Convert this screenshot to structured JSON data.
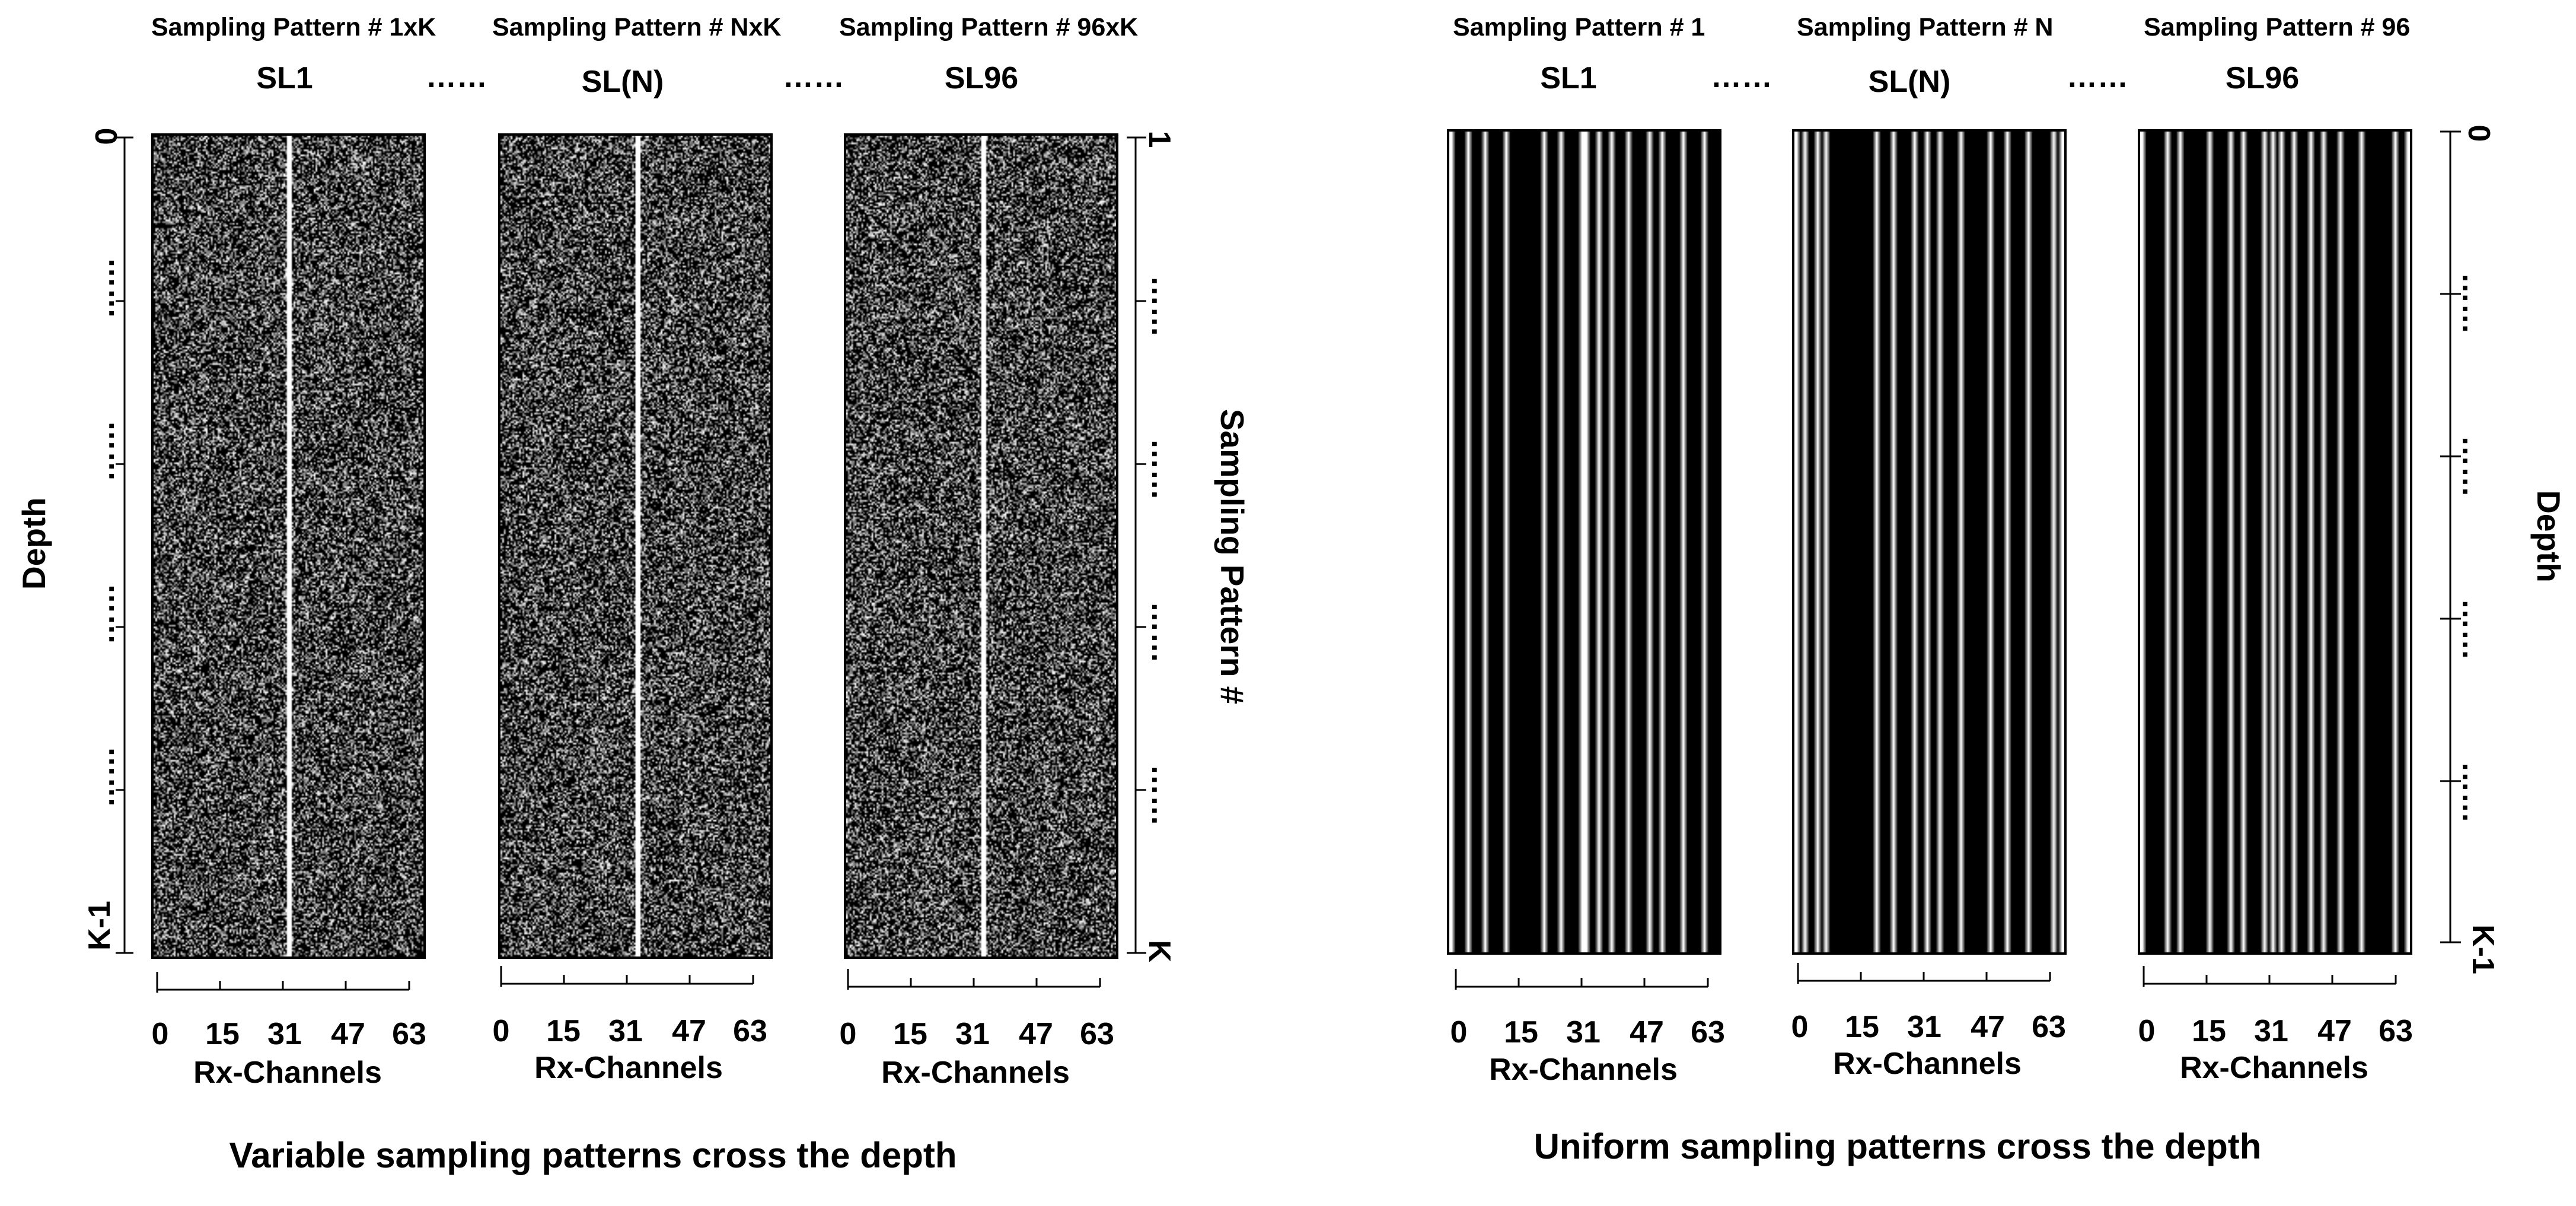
{
  "left_group": {
    "panels": [
      {
        "pattern_title": "Sampling Pattern # 1xK",
        "sl_title": "SL1"
      },
      {
        "pattern_title": "Sampling Pattern # NxK",
        "sl_title": "SL(N)"
      },
      {
        "pattern_title": "Sampling Pattern # 96xK",
        "sl_title": "SL96"
      }
    ],
    "ellipsis_between": [
      "……",
      "……"
    ],
    "left_axis": {
      "title": "Depth",
      "top_label": "0",
      "mid_label": "……",
      "bottom_label": "K-1"
    },
    "right_axis": {
      "title": "Sampling Pattern #",
      "top_label": "1",
      "mid_label": "……",
      "bottom_label": "K"
    },
    "caption": "Variable sampling patterns cross the depth"
  },
  "right_group": {
    "panels": [
      {
        "pattern_title": "Sampling Pattern # 1",
        "sl_title": "SL1"
      },
      {
        "pattern_title": "Sampling Pattern # N",
        "sl_title": "SL(N)"
      },
      {
        "pattern_title": "Sampling Pattern # 96",
        "sl_title": "SL96"
      }
    ],
    "ellipsis_between": [
      "……",
      "……"
    ],
    "right_axis": {
      "title": "Depth",
      "top_label": "0",
      "mid_label": "……",
      "bottom_label": "K-1"
    },
    "caption": "Uniform sampling patterns cross the depth"
  },
  "x_axis": {
    "title": "Rx-Channels",
    "ticks": [
      "0",
      "15",
      "31",
      "47",
      "63"
    ]
  },
  "colors": {
    "sampled": "#ffffff",
    "unsampled": "#000000",
    "background": "#ffffff"
  }
}
